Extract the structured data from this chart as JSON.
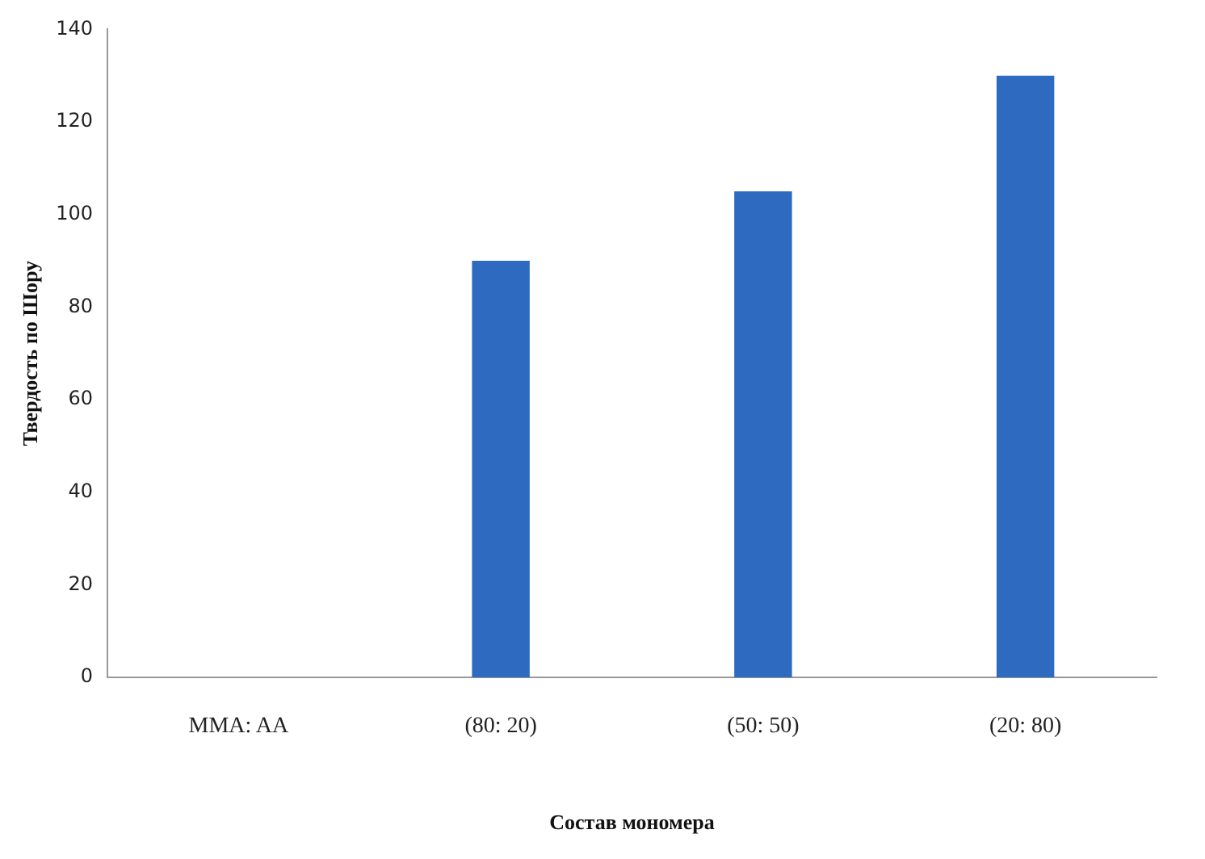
{
  "chart_data": {
    "type": "bar",
    "xlabel": "Состав мономера",
    "ylabel": "Твердость по Шору",
    "categories": [
      "MMA: AA",
      "(80: 20)",
      "(50: 50)",
      "(20: 80)"
    ],
    "values": [
      null,
      90,
      105,
      130
    ],
    "color": "#2e6bc0",
    "ylim": [
      0,
      140
    ],
    "yticks": [
      0,
      20,
      40,
      60,
      80,
      100,
      120,
      140
    ],
    "grid": false,
    "legend": false
  }
}
